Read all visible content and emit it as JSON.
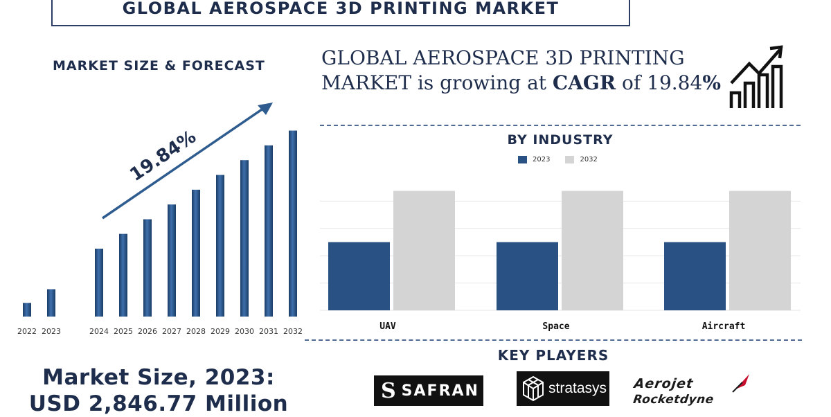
{
  "header": {
    "title": "GLOBAL AEROSPACE 3D PRINTING MARKET"
  },
  "forecast": {
    "heading": "MARKET SIZE & FORECAST",
    "cagr_label": "19.84%",
    "market_size_line1": "Market Size, 2023:",
    "market_size_line2": "USD 2,846.77 Million"
  },
  "cagr_statement": {
    "line1": "GLOBAL AEROSPACE 3D PRINTING",
    "line2_pre": "MARKET is growing at ",
    "line2_bold": "CAGR",
    "line2_mid": " of 19.84",
    "line2_pct": "%"
  },
  "industry": {
    "heading": "BY INDUSTRY"
  },
  "players": {
    "heading": "KEY PLAYERS",
    "logos": [
      {
        "name": "SAFRAN",
        "icon": "safran-logo"
      },
      {
        "name": "stratasys",
        "icon": "stratasys-logo"
      },
      {
        "name": "Aerojet Rocketdyne",
        "icon": "aerojet-rocketdyne-logo"
      }
    ]
  },
  "colors": {
    "navy": "#2a5183",
    "gray": "#d4d4d4",
    "text": "#1f2d4d"
  },
  "chart_data": [
    {
      "type": "bar",
      "categories": [
        "2022",
        "2023",
        "2024",
        "2025",
        "2026",
        "2027",
        "2028",
        "2029",
        "2030",
        "2031",
        "2032"
      ],
      "values": [
        8.7,
        17.4,
        43.2,
        52.6,
        61.9,
        71.3,
        80.7,
        90.1,
        99.5,
        108.9,
        118.3
      ],
      "annotation": "19.84%",
      "ylim": [
        0,
        130
      ],
      "grid": false
    },
    {
      "type": "bar",
      "categories": [
        "UAV",
        "Space",
        "Aircraft"
      ],
      "series": [
        {
          "name": "2023",
          "values": [
            2.0,
            2.0,
            2.0
          ],
          "color": "#2a5183"
        },
        {
          "name": "2032",
          "values": [
            3.5,
            3.5,
            3.5
          ],
          "color": "#d4d4d4"
        }
      ],
      "ylim": [
        0,
        4
      ],
      "grid": true,
      "legend": "top-center"
    }
  ]
}
